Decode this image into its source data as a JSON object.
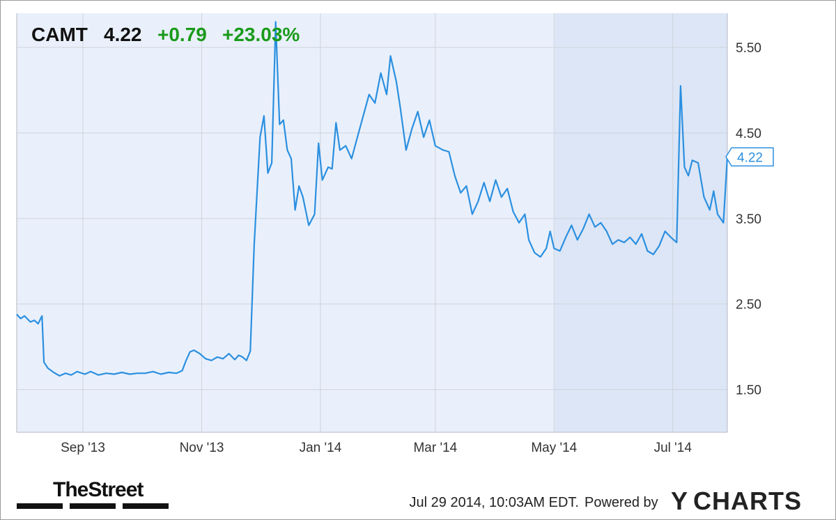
{
  "header": {
    "ticker": "CAMT",
    "price": "4.22",
    "change": "+0.79",
    "change_pct": "+23.03%",
    "change_color": "#1a9a1a"
  },
  "chart_data": {
    "type": "line",
    "title": "",
    "xlabel": "",
    "ylabel": "",
    "y_ticks": [
      "1.50",
      "2.50",
      "3.50",
      "4.50",
      "5.50"
    ],
    "ylim": [
      1.0,
      5.9
    ],
    "x_ticks": [
      {
        "label": "Sep '13",
        "date": "2013-09-01"
      },
      {
        "label": "Nov '13",
        "date": "2013-11-01"
      },
      {
        "label": "Jan '14",
        "date": "2014-01-01"
      },
      {
        "label": "Mar '14",
        "date": "2014-03-01"
      },
      {
        "label": "May '14",
        "date": "2014-05-01"
      },
      {
        "label": "Jul '14",
        "date": "2014-07-01"
      }
    ],
    "xlim": [
      "2013-07-29",
      "2014-07-29"
    ],
    "grid": true,
    "last_value_label": "4.22",
    "line_color": "#2b8fe0",
    "series": [
      {
        "name": "",
        "points": [
          [
            "2013-07-29",
            2.38
          ],
          [
            "2013-07-31",
            2.33
          ],
          [
            "2013-08-02",
            2.36
          ],
          [
            "2013-08-05",
            2.29
          ],
          [
            "2013-08-07",
            2.31
          ],
          [
            "2013-08-09",
            2.27
          ],
          [
            "2013-08-11",
            2.36
          ],
          [
            "2013-08-12",
            1.82
          ],
          [
            "2013-08-14",
            1.75
          ],
          [
            "2013-08-17",
            1.7
          ],
          [
            "2013-08-20",
            1.66
          ],
          [
            "2013-08-23",
            1.69
          ],
          [
            "2013-08-26",
            1.67
          ],
          [
            "2013-08-29",
            1.71
          ],
          [
            "2013-09-02",
            1.68
          ],
          [
            "2013-09-05",
            1.71
          ],
          [
            "2013-09-09",
            1.67
          ],
          [
            "2013-09-13",
            1.69
          ],
          [
            "2013-09-17",
            1.68
          ],
          [
            "2013-09-21",
            1.7
          ],
          [
            "2013-09-25",
            1.68
          ],
          [
            "2013-09-29",
            1.69
          ],
          [
            "2013-10-03",
            1.69
          ],
          [
            "2013-10-07",
            1.71
          ],
          [
            "2013-10-11",
            1.68
          ],
          [
            "2013-10-15",
            1.7
          ],
          [
            "2013-10-19",
            1.69
          ],
          [
            "2013-10-22",
            1.72
          ],
          [
            "2013-10-24",
            1.84
          ],
          [
            "2013-10-26",
            1.94
          ],
          [
            "2013-10-28",
            1.96
          ],
          [
            "2013-10-31",
            1.92
          ],
          [
            "2013-11-03",
            1.86
          ],
          [
            "2013-11-06",
            1.84
          ],
          [
            "2013-11-09",
            1.88
          ],
          [
            "2013-11-12",
            1.86
          ],
          [
            "2013-11-15",
            1.92
          ],
          [
            "2013-11-18",
            1.85
          ],
          [
            "2013-11-20",
            1.9
          ],
          [
            "2013-11-22",
            1.88
          ],
          [
            "2013-11-24",
            1.84
          ],
          [
            "2013-11-26",
            1.95
          ],
          [
            "2013-11-28",
            3.2
          ],
          [
            "2013-12-01",
            4.45
          ],
          [
            "2013-12-03",
            4.7
          ],
          [
            "2013-12-05",
            4.03
          ],
          [
            "2013-12-07",
            4.15
          ],
          [
            "2013-12-09",
            5.8
          ],
          [
            "2013-12-11",
            4.6
          ],
          [
            "2013-12-13",
            4.65
          ],
          [
            "2013-12-15",
            4.3
          ],
          [
            "2013-12-17",
            4.2
          ],
          [
            "2013-12-19",
            3.6
          ],
          [
            "2013-12-21",
            3.88
          ],
          [
            "2013-12-23",
            3.75
          ],
          [
            "2013-12-26",
            3.42
          ],
          [
            "2013-12-29",
            3.55
          ],
          [
            "2013-12-31",
            4.38
          ],
          [
            "2014-01-02",
            3.95
          ],
          [
            "2014-01-05",
            4.1
          ],
          [
            "2014-01-07",
            4.08
          ],
          [
            "2014-01-09",
            4.62
          ],
          [
            "2014-01-11",
            4.3
          ],
          [
            "2014-01-14",
            4.35
          ],
          [
            "2014-01-17",
            4.2
          ],
          [
            "2014-01-20",
            4.45
          ],
          [
            "2014-01-23",
            4.7
          ],
          [
            "2014-01-26",
            4.95
          ],
          [
            "2014-01-29",
            4.85
          ],
          [
            "2014-02-01",
            5.2
          ],
          [
            "2014-02-04",
            4.95
          ],
          [
            "2014-02-06",
            5.4
          ],
          [
            "2014-02-09",
            5.1
          ],
          [
            "2014-02-11",
            4.8
          ],
          [
            "2014-02-14",
            4.3
          ],
          [
            "2014-02-17",
            4.55
          ],
          [
            "2014-02-20",
            4.75
          ],
          [
            "2014-02-23",
            4.45
          ],
          [
            "2014-02-26",
            4.65
          ],
          [
            "2014-03-01",
            4.35
          ],
          [
            "2014-03-05",
            4.3
          ],
          [
            "2014-03-08",
            4.28
          ],
          [
            "2014-03-11",
            4.0
          ],
          [
            "2014-03-14",
            3.8
          ],
          [
            "2014-03-17",
            3.88
          ],
          [
            "2014-03-20",
            3.55
          ],
          [
            "2014-03-23",
            3.7
          ],
          [
            "2014-03-26",
            3.92
          ],
          [
            "2014-03-29",
            3.7
          ],
          [
            "2014-04-01",
            3.95
          ],
          [
            "2014-04-04",
            3.75
          ],
          [
            "2014-04-07",
            3.85
          ],
          [
            "2014-04-10",
            3.58
          ],
          [
            "2014-04-13",
            3.45
          ],
          [
            "2014-04-16",
            3.55
          ],
          [
            "2014-04-18",
            3.25
          ],
          [
            "2014-04-21",
            3.1
          ],
          [
            "2014-04-24",
            3.05
          ],
          [
            "2014-04-27",
            3.15
          ],
          [
            "2014-04-29",
            3.35
          ],
          [
            "2014-05-01",
            3.15
          ],
          [
            "2014-05-04",
            3.12
          ],
          [
            "2014-05-07",
            3.28
          ],
          [
            "2014-05-10",
            3.42
          ],
          [
            "2014-05-13",
            3.25
          ],
          [
            "2014-05-16",
            3.38
          ],
          [
            "2014-05-19",
            3.55
          ],
          [
            "2014-05-22",
            3.4
          ],
          [
            "2014-05-25",
            3.45
          ],
          [
            "2014-05-28",
            3.35
          ],
          [
            "2014-05-31",
            3.2
          ],
          [
            "2014-06-03",
            3.25
          ],
          [
            "2014-06-06",
            3.22
          ],
          [
            "2014-06-09",
            3.28
          ],
          [
            "2014-06-12",
            3.2
          ],
          [
            "2014-06-15",
            3.32
          ],
          [
            "2014-06-18",
            3.12
          ],
          [
            "2014-06-21",
            3.08
          ],
          [
            "2014-06-24",
            3.18
          ],
          [
            "2014-06-27",
            3.35
          ],
          [
            "2014-06-30",
            3.28
          ],
          [
            "2014-07-03",
            3.22
          ],
          [
            "2014-07-05",
            5.05
          ],
          [
            "2014-07-07",
            4.1
          ],
          [
            "2014-07-09",
            4.0
          ],
          [
            "2014-07-11",
            4.18
          ],
          [
            "2014-07-14",
            4.15
          ],
          [
            "2014-07-17",
            3.75
          ],
          [
            "2014-07-20",
            3.6
          ],
          [
            "2014-07-22",
            3.82
          ],
          [
            "2014-07-24",
            3.55
          ],
          [
            "2014-07-27",
            3.45
          ],
          [
            "2014-07-29",
            4.22
          ]
        ]
      }
    ]
  },
  "footer": {
    "brand_left": "TheStreet",
    "timestamp": "Jul 29 2014, 10:03AM EDT.",
    "powered_by": "Powered by",
    "brand_right_mark": "Y",
    "brand_right": "CHARTS"
  }
}
